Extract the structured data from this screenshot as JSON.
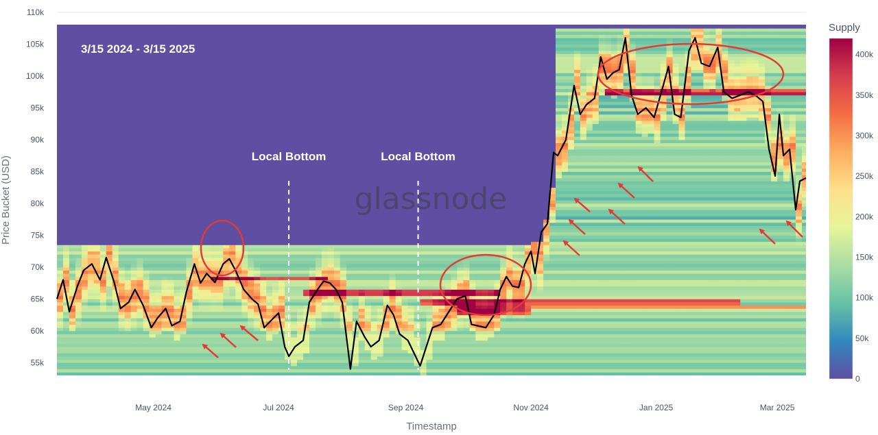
{
  "chart_data": {
    "type": "heatmap",
    "xlabel": "Timestamp",
    "ylabel": "Price Bucket (USD)",
    "x_range": [
      "2024-03-15",
      "2025-03-15"
    ],
    "x_ticks": [
      {
        "date": "2024-05-01",
        "label": "May 2024"
      },
      {
        "date": "2024-07-01",
        "label": "Jul 2024"
      },
      {
        "date": "2024-09-01",
        "label": "Sep 2024"
      },
      {
        "date": "2024-11-01",
        "label": "Nov 2024"
      },
      {
        "date": "2025-01-01",
        "label": "Jan 2025"
      },
      {
        "date": "2025-03-01",
        "label": "Mar 2025"
      }
    ],
    "y_ticks": [
      55000,
      60000,
      65000,
      70000,
      75000,
      80000,
      85000,
      90000,
      95000,
      100000,
      105000,
      110000
    ],
    "y_tick_labels": [
      "55k",
      "60k",
      "65k",
      "70k",
      "75k",
      "80k",
      "85k",
      "90k",
      "95k",
      "100k",
      "105k",
      "110k"
    ],
    "ylim": [
      53000,
      110000
    ],
    "colorbar": {
      "title": "Supply",
      "range": [
        0,
        420000
      ],
      "ticks": [
        0,
        50000,
        100000,
        150000,
        200000,
        250000,
        300000,
        350000,
        400000
      ],
      "tick_labels": [
        "0",
        "50k",
        "100k",
        "150k",
        "200k",
        "250k",
        "300k",
        "350k",
        "400k"
      ],
      "colors": [
        "#5e4fa2",
        "#3288bd",
        "#66c2a5",
        "#abdda4",
        "#e6f598",
        "#fee08b",
        "#fdae61",
        "#f46d43",
        "#d53e4f",
        "#9e0142"
      ]
    },
    "price_series": {
      "name": "",
      "color": "#000000",
      "points": [
        [
          "2024-03-15",
          65000
        ],
        [
          "2024-03-18",
          68000
        ],
        [
          "2024-03-21",
          63000
        ],
        [
          "2024-03-25",
          67000
        ],
        [
          "2024-03-28",
          69500
        ],
        [
          "2024-04-01",
          70500
        ],
        [
          "2024-04-05",
          68000
        ],
        [
          "2024-04-08",
          71500
        ],
        [
          "2024-04-12",
          67500
        ],
        [
          "2024-04-15",
          63500
        ],
        [
          "2024-04-19",
          64500
        ],
        [
          "2024-04-22",
          66500
        ],
        [
          "2024-04-26",
          64000
        ],
        [
          "2024-04-30",
          60500
        ],
        [
          "2024-05-03",
          62000
        ],
        [
          "2024-05-07",
          63500
        ],
        [
          "2024-05-10",
          60800
        ],
        [
          "2024-05-14",
          61500
        ],
        [
          "2024-05-17",
          66000
        ],
        [
          "2024-05-21",
          70500
        ],
        [
          "2024-05-24",
          67500
        ],
        [
          "2024-05-27",
          69000
        ],
        [
          "2024-05-31",
          67600
        ],
        [
          "2024-06-04",
          70500
        ],
        [
          "2024-06-07",
          71300
        ],
        [
          "2024-06-10",
          69500
        ],
        [
          "2024-06-14",
          66500
        ],
        [
          "2024-06-18",
          65000
        ],
        [
          "2024-06-21",
          64200
        ],
        [
          "2024-06-24",
          60500
        ],
        [
          "2024-06-27",
          61500
        ],
        [
          "2024-07-01",
          62800
        ],
        [
          "2024-07-04",
          57500
        ],
        [
          "2024-07-06",
          56000
        ],
        [
          "2024-07-09",
          57500
        ],
        [
          "2024-07-13",
          58500
        ],
        [
          "2024-07-16",
          64500
        ],
        [
          "2024-07-20",
          66500
        ],
        [
          "2024-07-23",
          67800
        ],
        [
          "2024-07-26",
          67500
        ],
        [
          "2024-07-29",
          66500
        ],
        [
          "2024-08-01",
          64500
        ],
        [
          "2024-08-05",
          54000
        ],
        [
          "2024-08-08",
          61500
        ],
        [
          "2024-08-12",
          59000
        ],
        [
          "2024-08-15",
          57500
        ],
        [
          "2024-08-19",
          58500
        ],
        [
          "2024-08-23",
          64000
        ],
        [
          "2024-08-26",
          62500
        ],
        [
          "2024-08-29",
          59500
        ],
        [
          "2024-09-02",
          58500
        ],
        [
          "2024-09-05",
          56500
        ],
        [
          "2024-09-08",
          54500
        ],
        [
          "2024-09-11",
          57500
        ],
        [
          "2024-09-14",
          60500
        ],
        [
          "2024-09-18",
          61000
        ],
        [
          "2024-09-22",
          63000
        ],
        [
          "2024-09-26",
          65000
        ],
        [
          "2024-09-30",
          65500
        ],
        [
          "2024-10-03",
          61000
        ],
        [
          "2024-10-06",
          60800
        ],
        [
          "2024-10-10",
          60500
        ],
        [
          "2024-10-14",
          62500
        ],
        [
          "2024-10-17",
          66500
        ],
        [
          "2024-10-20",
          68500
        ],
        [
          "2024-10-23",
          67000
        ],
        [
          "2024-10-26",
          66800
        ],
        [
          "2024-10-29",
          70500
        ],
        [
          "2024-11-01",
          72500
        ],
        [
          "2024-11-03",
          69000
        ],
        [
          "2024-11-06",
          75500
        ],
        [
          "2024-11-09",
          76800
        ],
        [
          "2024-11-12",
          88000
        ],
        [
          "2024-11-14",
          87500
        ],
        [
          "2024-11-18",
          90000
        ],
        [
          "2024-11-22",
          98500
        ],
        [
          "2024-11-25",
          94000
        ],
        [
          "2024-11-28",
          95500
        ],
        [
          "2024-12-02",
          96500
        ],
        [
          "2024-12-05",
          103000
        ],
        [
          "2024-12-08",
          99500
        ],
        [
          "2024-12-11",
          100500
        ],
        [
          "2024-12-14",
          101000
        ],
        [
          "2024-12-17",
          106000
        ],
        [
          "2024-12-20",
          97000
        ],
        [
          "2024-12-23",
          94000
        ],
        [
          "2024-12-27",
          95000
        ],
        [
          "2024-12-31",
          93500
        ],
        [
          "2025-01-04",
          98000
        ],
        [
          "2025-01-07",
          101500
        ],
        [
          "2025-01-10",
          94000
        ],
        [
          "2025-01-13",
          93500
        ],
        [
          "2025-01-17",
          104000
        ],
        [
          "2025-01-20",
          106000
        ],
        [
          "2025-01-23",
          102000
        ],
        [
          "2025-01-27",
          101500
        ],
        [
          "2025-01-31",
          104500
        ],
        [
          "2025-02-03",
          97500
        ],
        [
          "2025-02-07",
          96500
        ],
        [
          "2025-02-11",
          97000
        ],
        [
          "2025-02-15",
          97500
        ],
        [
          "2025-02-19",
          96800
        ],
        [
          "2025-02-22",
          96000
        ],
        [
          "2025-02-25",
          88500
        ],
        [
          "2025-02-28",
          84300
        ],
        [
          "2025-03-02",
          94000
        ],
        [
          "2025-03-04",
          87500
        ],
        [
          "2025-03-07",
          88500
        ],
        [
          "2025-03-10",
          79000
        ],
        [
          "2025-03-12",
          83500
        ],
        [
          "2025-03-15",
          84000
        ]
      ]
    },
    "annotations": {
      "period": "3/15 2024 - 3/15 2025",
      "markers": [
        {
          "label": "Local Bottom",
          "date": "2024-07-06"
        },
        {
          "label": "Local Bottom",
          "date": "2024-09-07"
        }
      ]
    },
    "highlight_color": "#e53935",
    "watermark": "glassnode",
    "grid": "horizontal"
  }
}
